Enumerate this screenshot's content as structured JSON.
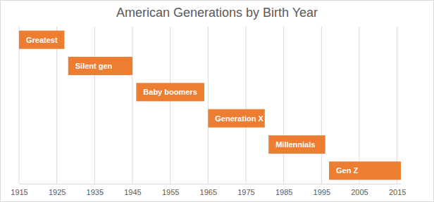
{
  "chart_data": {
    "type": "gantt",
    "title": "American Generations by Birth Year",
    "categories": [
      "Greatest",
      "Silent gen",
      "Baby boomers",
      "Generation X",
      "Millennials",
      "Gen Z"
    ],
    "start": [
      1915,
      1928,
      1946,
      1965,
      1981,
      1997
    ],
    "end": [
      1927,
      1945,
      1964,
      1980,
      1996,
      2016
    ],
    "color": "#ed7d31",
    "orientation": "horizontal",
    "xlim": [
      1915,
      2016
    ],
    "xticks": [
      1915,
      1925,
      1935,
      1945,
      1955,
      1965,
      1975,
      1985,
      1995,
      2005,
      2015
    ],
    "grid": true,
    "tick_labels": "x"
  }
}
